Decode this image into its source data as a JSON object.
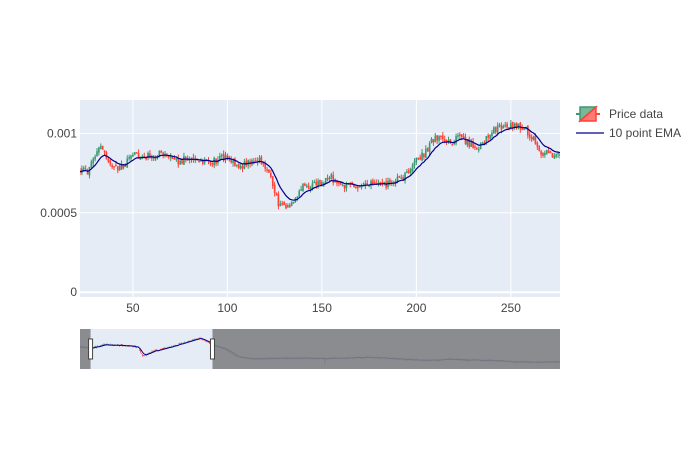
{
  "chart_data": {
    "type": "candlestick",
    "x_range": [
      22,
      276
    ],
    "y_range": [
      -3e-05,
      0.00121
    ],
    "x_ticks": [
      50,
      100,
      150,
      200,
      250
    ],
    "x_tick_labels": [
      "50",
      "100",
      "150",
      "200",
      "250"
    ],
    "y_ticks": [
      0,
      0.0005,
      0.001
    ],
    "y_tick_labels": [
      "0",
      "0.0005",
      "0.001"
    ],
    "legend": {
      "placement": "top-right",
      "items": [
        {
          "name": "Price data",
          "kind": "candlestick"
        },
        {
          "name": "10 point EMA",
          "kind": "line"
        }
      ]
    },
    "colors": {
      "increasing": "#3d9970",
      "decreasing": "#ff4136",
      "ema": "#00008b",
      "plot_bg": "#e5ecf6",
      "grid": "#ffffff",
      "rangeslider_bg": "#e5ecf6",
      "rangeslider_mask": "#808285"
    },
    "close_profile": [
      [
        22,
        0.00077
      ],
      [
        26,
        0.00076
      ],
      [
        30,
        0.00084
      ],
      [
        33,
        0.00093
      ],
      [
        37,
        0.00082
      ],
      [
        41,
        0.00078
      ],
      [
        46,
        0.0008
      ],
      [
        50,
        0.00088
      ],
      [
        55,
        0.00085
      ],
      [
        60,
        0.00086
      ],
      [
        66,
        0.00087
      ],
      [
        72,
        0.00082
      ],
      [
        78,
        0.00084
      ],
      [
        85,
        0.00083
      ],
      [
        92,
        0.00082
      ],
      [
        97,
        0.00085
      ],
      [
        102,
        0.00082
      ],
      [
        106,
        0.00079
      ],
      [
        110,
        0.00081
      ],
      [
        114,
        0.00083
      ],
      [
        118,
        0.00083
      ],
      [
        121,
        0.00078
      ],
      [
        124,
        0.00068
      ],
      [
        127,
        0.00056
      ],
      [
        131,
        0.00053
      ],
      [
        135,
        0.00058
      ],
      [
        140,
        0.00066
      ],
      [
        145,
        0.00068
      ],
      [
        150,
        0.00069
      ],
      [
        155,
        0.00072
      ],
      [
        160,
        0.00066
      ],
      [
        165,
        0.00068
      ],
      [
        170,
        0.00066
      ],
      [
        176,
        0.00068
      ],
      [
        182,
        0.00067
      ],
      [
        188,
        0.0007
      ],
      [
        192,
        0.00071
      ],
      [
        196,
        0.00076
      ],
      [
        200,
        0.00084
      ],
      [
        204,
        0.00087
      ],
      [
        207,
        0.00093
      ],
      [
        210,
        0.00098
      ],
      [
        214,
        0.00096
      ],
      [
        218,
        0.00094
      ],
      [
        222,
        0.00097
      ],
      [
        227,
        0.00094
      ],
      [
        232,
        0.00091
      ],
      [
        236,
        0.00095
      ],
      [
        240,
        0.00101
      ],
      [
        245,
        0.00104
      ],
      [
        250,
        0.00105
      ],
      [
        255,
        0.00104
      ],
      [
        259,
        0.00101
      ],
      [
        263,
        0.00095
      ],
      [
        266,
        0.00088
      ],
      [
        270,
        0.00087
      ],
      [
        276,
        0.00086
      ]
    ],
    "volatility": 2.8e-05,
    "rangeslider_data": {
      "x_range": [
        0,
        1000
      ],
      "visible_window": [
        22,
        276
      ],
      "close_profile": [
        [
          0,
          0.0008
        ],
        [
          22,
          0.00077
        ],
        [
          50,
          0.00087
        ],
        [
          100,
          0.00084
        ],
        [
          121,
          0.0008
        ],
        [
          131,
          0.00055
        ],
        [
          150,
          0.00068
        ],
        [
          200,
          0.00085
        ],
        [
          250,
          0.00105
        ],
        [
          276,
          0.00086
        ],
        [
          300,
          0.00075
        ],
        [
          330,
          0.00052
        ],
        [
          360,
          0.00048
        ],
        [
          400,
          0.00049
        ],
        [
          450,
          0.0005
        ],
        [
          500,
          0.00049
        ],
        [
          550,
          0.0005
        ],
        [
          600,
          0.00052
        ],
        [
          650,
          0.00049
        ],
        [
          700,
          0.00045
        ],
        [
          740,
          0.00044
        ],
        [
          770,
          0.00047
        ],
        [
          800,
          0.00045
        ],
        [
          850,
          0.00044
        ],
        [
          900,
          0.0004
        ],
        [
          950,
          0.00039
        ],
        [
          1000,
          0.0004
        ]
      ],
      "y_range": [
        0.0002,
        0.0013
      ]
    }
  }
}
